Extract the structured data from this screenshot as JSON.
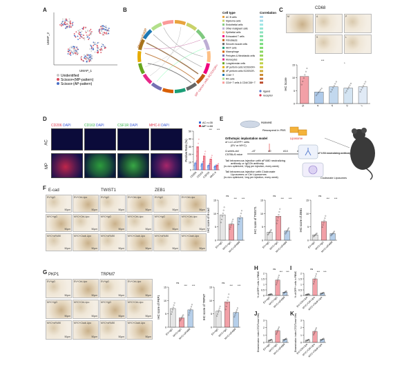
{
  "panels": [
    "A",
    "B",
    "C",
    "D",
    "E",
    "F",
    "G",
    "H",
    "I",
    "J",
    "K"
  ],
  "panelA": {
    "xlabel": "UMAP_1",
    "ylabel": "UMAP_2",
    "legend": [
      "Unidentified",
      "Scissor+(MP-pattern)",
      "Scissor-(AP-pattern)"
    ],
    "legend_colors": [
      "#c8c8c8",
      "#d9485a",
      "#4a6fc4"
    ]
  },
  "panelB": {
    "legend_title_left": "Cell type",
    "legend_title_right": "Correlation",
    "cell_types": [
      "AC B cells",
      "Myeloma cells",
      "Endothelial cells",
      "Other malignant cells",
      "Epithelial cells",
      "Exhausted T cells",
      "Fibroblasts",
      "Smooth muscle cells",
      "NK/T cells",
      "Macrophage",
      "Pericytes & fibroblastic cells",
      "Monocytes",
      "Lung/alveolar cells",
      "dP perform cells SCISSOR+",
      "dP perform cells SCISSOR-",
      "CD8+ T",
      "RK cells",
      "CD4+ T cells & CD4/CD8+ T"
    ],
    "type_colors": [
      "#e8a33d",
      "#c9d26a",
      "#7fc97f",
      "#beaed4",
      "#fdc086",
      "#f0027f",
      "#bf5b17",
      "#666666",
      "#1b9e77",
      "#d95f02",
      "#7570b3",
      "#e7298a",
      "#66a61e",
      "#e6ab02",
      "#a6761d",
      "#1f78b4",
      "#b2df8a",
      "#fb9a99"
    ],
    "legend_markers": [
      "ligand",
      "receptor"
    ],
    "circle_labels": [
      "Macrophage",
      "MP cancer cells SCISSOR+"
    ]
  },
  "panelC": {
    "title": "CD68",
    "tile_labels": [
      "M",
      "A",
      "P",
      "S",
      "L"
    ],
    "ylabel": "IHC Score",
    "sig": [
      "***",
      "*"
    ],
    "chart_data": {
      "type": "bar",
      "categories": [
        "M",
        "A",
        "P",
        "S",
        "L"
      ],
      "values": [
        10.5,
        4.5,
        6.5,
        6.0,
        6.5
      ],
      "ylim": [
        0,
        15
      ],
      "yticks": [
        0,
        5,
        10,
        15
      ],
      "ylabel": "IHC Score"
    }
  },
  "panelD": {
    "row_labels": [
      "AC",
      "MP"
    ],
    "col_titles": [
      {
        "marker": "CD206",
        "stain": "DAPI",
        "color": "#e0334b"
      },
      {
        "marker": "CD163",
        "stain": "DAPI",
        "color": "#35b34a"
      },
      {
        "marker": "CSF1R",
        "stain": "DAPI",
        "color": "#35b34a"
      },
      {
        "marker": "MHC-II",
        "stain": "DAPI",
        "color": "#e0334b"
      }
    ],
    "legend": [
      "AC n=35",
      "MP n=66"
    ],
    "sig": [
      "***",
      "***",
      "***",
      "ns"
    ],
    "chart_data": {
      "type": "bar",
      "categories": [
        "CD206",
        "CD163",
        "CSF1R",
        "MHC-II"
      ],
      "series": [
        {
          "name": "AC n=35",
          "values": [
            9,
            8,
            6,
            5
          ]
        },
        {
          "name": "MP n=66",
          "values": [
            30,
            18,
            14,
            6
          ]
        }
      ],
      "ylabel": "Positive Ratio (%)",
      "ylim": [
        0,
        50
      ],
      "yticks": [
        0,
        10,
        20,
        30,
        40,
        50
      ]
    }
  },
  "panelE": {
    "harvest": "Harvest",
    "resuspend": "Resuspend in PBS",
    "model_title": "Orthotopic implantation model",
    "model_sub1": "of LLC-eGFP+ cells",
    "model_sub2": "(EV or MYC)",
    "lipo": "Liposome",
    "weeks_old": "4-week-old",
    "mice": "C57BL/6 mice",
    "timeline": [
      "-d7",
      "d0",
      "d14",
      "d28"
    ],
    "tail1": "Tail intravenous injection with αF4/80 neutralizing",
    "tail1b": "antibody or IgG2b antibody",
    "tail1c": "(in-vivo optimized, 10μg per injection, every week)",
    "antibody": "αF4/80 neutralizing antibody",
    "tail2": "Tail intravenous injection with Clodronate",
    "tail2b": "Liposomes or Ctrl Liposomes",
    "tail2c": "(in-vivo optimized, 1mg per injection, every week)",
    "clodronate": "Clodronate Liposomes"
  },
  "panelF": {
    "col_titles": [
      "E-cad",
      "TWIST1",
      "ZEB1"
    ],
    "tile_labels": [
      [
        "EV+IgG",
        "EV+Ctrl-Lipo",
        "EV+IgG",
        "EV+Ctrl-Lipo",
        "EV+IgG",
        "EV+Ctrl-Lipo"
      ],
      [
        "MYC+IgG",
        "MYC+Ctrl-Lipo",
        "MYC+IgG",
        "MYC+Ctrl-Lipo",
        "MYC+IgG",
        "MYC+Ctrl-Lipo"
      ],
      [
        "MYC+αF4/80",
        "MYC+Clodr-Lipo",
        "MYC+αF4/80",
        "MYC+Clodr-Lipo",
        "MYC+αF4/80",
        "MYC+Clodr-Lipo"
      ]
    ],
    "scale": "50μm",
    "charts": [
      {
        "ylabel": "IHC score of E-cad",
        "sig": [
          "ns",
          "***",
          "***"
        ],
        "chart_data": {
          "type": "bar",
          "categories": [
            "EV+IgG",
            "MYC+IgG",
            "MYC+αF4/80"
          ],
          "values": [
            9.5,
            6.0,
            8.5
          ],
          "ylim": [
            0,
            15
          ],
          "yticks": [
            0,
            5,
            10,
            15
          ]
        }
      },
      {
        "ylabel": "IHC score of TWIST1",
        "sig": [
          "ns",
          "***",
          "***"
        ],
        "chart_data": {
          "type": "bar",
          "categories": [
            "EV+IgG",
            "MYC+IgG",
            "MYC+αF4/80"
          ],
          "values": [
            3.0,
            9.0,
            3.5
          ],
          "ylim": [
            0,
            15
          ],
          "yticks": [
            0,
            5,
            10,
            15
          ]
        }
      },
      {
        "ylabel": "IHC score of ZEB1",
        "sig": [
          "ns",
          "***",
          "***"
        ],
        "chart_data": {
          "type": "bar",
          "categories": [
            "EV+IgG",
            "MYC+IgG",
            "MYC+αF4/80"
          ],
          "values": [
            2.0,
            7.0,
            2.5
          ],
          "ylim": [
            0,
            15
          ],
          "yticks": [
            0,
            5,
            10,
            15
          ]
        }
      }
    ]
  },
  "panelG": {
    "col_titles": [
      "PKP1",
      "TRPM7"
    ],
    "tile_labels": [
      [
        "EV+IgG",
        "EV+Ctrl-Lipo",
        "EV+IgG",
        "EV+Ctrl-Lipo"
      ],
      [
        "MYC+IgG",
        "MYC+Ctrl-Lipo",
        "MYC+IgG",
        "MYC+Ctrl-Lipo"
      ],
      [
        "MYC+αF4/80",
        "MYC+Clodr-Lipo",
        "MYC+αF4/80",
        "MYC+Clodr-Lipo"
      ]
    ],
    "scale": "50μm",
    "charts": [
      {
        "ylabel": "IHC score of PKP1",
        "sig": [
          "ns",
          "***",
          "***"
        ],
        "chart_data": {
          "type": "bar",
          "categories": [
            "EV+IgG",
            "MYC+IgG",
            "MYC+αF4/80"
          ],
          "values": [
            7.0,
            3.5,
            6.5
          ],
          "ylim": [
            0,
            15
          ],
          "yticks": [
            0,
            5,
            10,
            15
          ]
        }
      },
      {
        "ylabel": "IHC score of TRPM7",
        "sig": [
          "ns",
          "***",
          "***"
        ],
        "chart_data": {
          "type": "bar",
          "categories": [
            "EV+IgG",
            "MYC+IgG",
            "MYC+αF4/80"
          ],
          "values": [
            6.0,
            9.5,
            5.5
          ],
          "ylim": [
            0,
            15
          ],
          "yticks": [
            0,
            5,
            10,
            15
          ]
        }
      }
    ]
  },
  "smallCharts": {
    "H": {
      "ylabel": "% of GFP+ cells in PBMC",
      "sig": [
        "ns",
        "***",
        "***"
      ],
      "chart_data": {
        "type": "bar",
        "categories": [
          "EV+IgG",
          "MYC+IgG",
          "MYC+αF4/80"
        ],
        "values": [
          0.1,
          1.4,
          0.3
        ],
        "ylim": [
          0,
          2
        ],
        "yticks": [
          0,
          0.5,
          1,
          1.5,
          2
        ]
      }
    },
    "I": {
      "ylabel": "% of GFP+ cells in PBMC",
      "sig": [
        "ns",
        "***",
        "***"
      ],
      "chart_data": {
        "type": "bar",
        "categories": [
          "EV+Ctrl-Lipo",
          "MYC+Ctrl-Lipo",
          "MYC+Clodr-Lipo"
        ],
        "values": [
          0.1,
          1.5,
          0.2
        ],
        "ylim": [
          0,
          2
        ],
        "yticks": [
          0,
          0.5,
          1,
          1.5,
          2
        ]
      }
    },
    "J": {
      "ylabel": "Dissemination index CTC/Tumor Weight",
      "sig": [],
      "chart_data": {
        "type": "bar",
        "categories": [
          "EV+IgG",
          "MYC+IgG",
          "MYC+αF4/80"
        ],
        "values": [
          0.3,
          1.6,
          0.4
        ],
        "ylim": [
          0,
          3
        ],
        "yticks": [
          0,
          1,
          2,
          3
        ]
      }
    },
    "K": {
      "ylabel": "Dissemination index CTC/Tumor Weight",
      "sig": [],
      "chart_data": {
        "type": "bar",
        "categories": [
          "EV+Ctrl-Lipo",
          "MYC+Ctrl-Lipo",
          "MYC+Clodr-Lipo"
        ],
        "values": [
          0.3,
          1.5,
          0.4
        ],
        "ylim": [
          0,
          3
        ],
        "yticks": [
          0,
          1,
          2,
          3
        ]
      }
    }
  }
}
